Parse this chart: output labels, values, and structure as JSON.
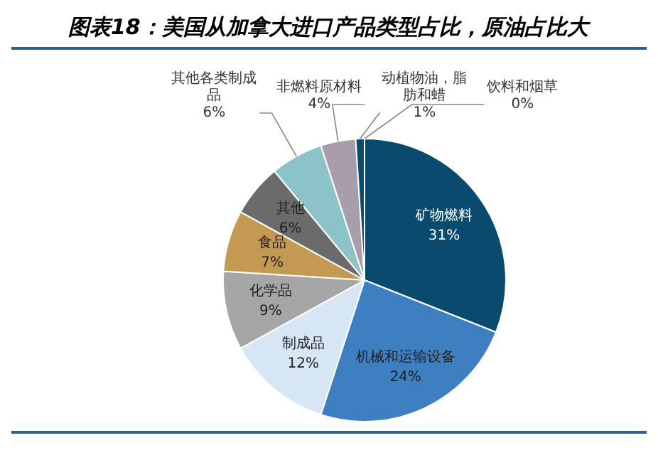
{
  "chart_data": {
    "type": "pie",
    "title": "图表18：美国从加拿大进口产品类型占比，原油占比大",
    "categories": [
      "矿物燃料",
      "机械和运输设备",
      "制成品",
      "化学品",
      "食品",
      "其他",
      "其他各类制成品",
      "非燃料原材料",
      "动植物油，脂肪和蜡",
      "饮料和烟草"
    ],
    "values": [
      31,
      24,
      12,
      9,
      7,
      6,
      6,
      4,
      1,
      0
    ],
    "colors": [
      "#0b4a6f",
      "#3e7fc1",
      "#d6e6f5",
      "#a6a6a6",
      "#c49a52",
      "#6b6b6b",
      "#8cc3c9",
      "#a89eab",
      "#0b4a6f",
      "#5b9bd5"
    ],
    "value_labels": [
      "31%",
      "24%",
      "12%",
      "9%",
      "7%",
      "6%",
      "6%",
      "4%",
      "1%",
      "0%"
    ],
    "legend": false
  }
}
